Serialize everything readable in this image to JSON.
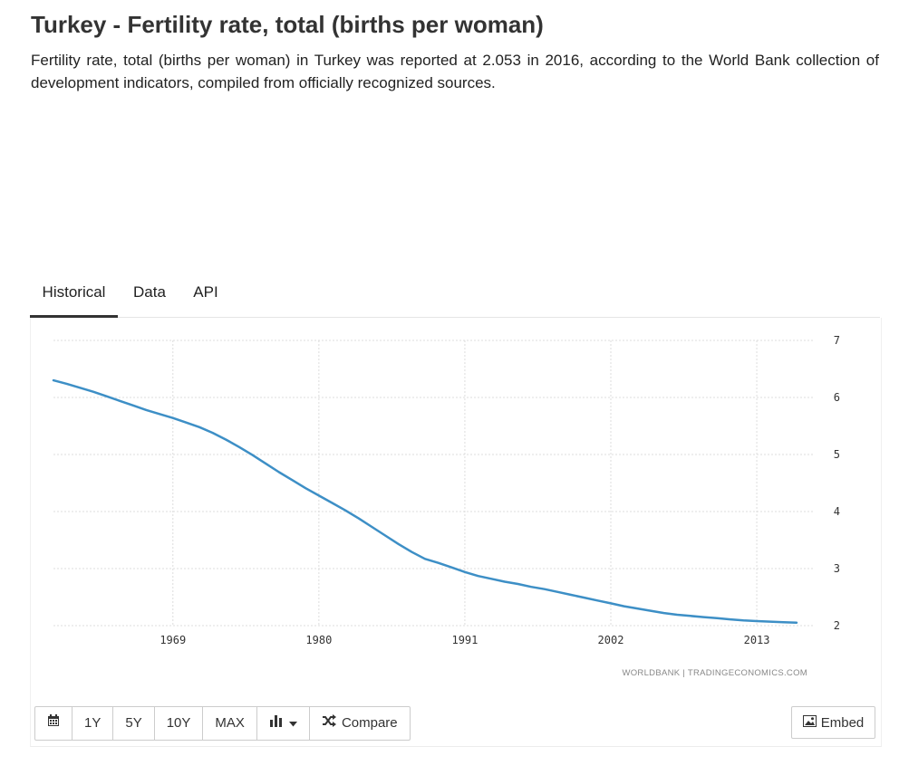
{
  "page": {
    "title": "Turkey - Fertility rate, total (births per woman)",
    "description": "Fertility rate, total (births per woman) in Turkey was reported at 2.053 in 2016, according to the World Bank collection of development indicators, compiled from officially recognized sources."
  },
  "tabs": [
    {
      "label": "Historical",
      "active": true
    },
    {
      "label": "Data",
      "active": false
    },
    {
      "label": "API",
      "active": false
    }
  ],
  "toolbar": {
    "calendar_icon": "calendar-icon",
    "ranges": [
      "1Y",
      "5Y",
      "10Y",
      "MAX"
    ],
    "chart_type_icon": "bar-chart-icon",
    "compare_icon": "shuffle-icon",
    "compare_label": "Compare",
    "embed_icon": "image-icon",
    "embed_label": "Embed"
  },
  "colors": {
    "line": "#3d8fc6",
    "grid": "#dddddd",
    "tick_text": "#333333",
    "source_text": "#888888"
  },
  "chart_data": {
    "type": "line",
    "title": "",
    "xlabel": "",
    "ylabel": "",
    "xlim": [
      1960,
      2016
    ],
    "ylim": [
      2,
      7
    ],
    "x_ticks": [
      1969,
      1980,
      1991,
      2002,
      2013
    ],
    "y_ticks": [
      2,
      3,
      4,
      5,
      6,
      7
    ],
    "y_axis_side": "right",
    "grid": true,
    "legend": "none",
    "source": "WORLDBANK | TRADINGECONOMICS.COM",
    "series": [
      {
        "x": [
          1960,
          1961,
          1962,
          1963,
          1964,
          1965,
          1966,
          1967,
          1968,
          1969,
          1970,
          1971,
          1972,
          1973,
          1974,
          1975,
          1976,
          1977,
          1978,
          1979,
          1980,
          1981,
          1982,
          1983,
          1984,
          1985,
          1986,
          1987,
          1988,
          1989,
          1990,
          1991,
          1992,
          1993,
          1994,
          1995,
          1996,
          1997,
          1998,
          1999,
          2000,
          2001,
          2002,
          2003,
          2004,
          2005,
          2006,
          2007,
          2008,
          2009,
          2010,
          2011,
          2012,
          2013,
          2014,
          2015,
          2016
        ],
        "values": [
          6.3,
          6.24,
          6.17,
          6.1,
          6.02,
          5.94,
          5.86,
          5.78,
          5.71,
          5.64,
          5.56,
          5.48,
          5.38,
          5.26,
          5.13,
          4.99,
          4.84,
          4.69,
          4.55,
          4.41,
          4.28,
          4.15,
          4.02,
          3.88,
          3.73,
          3.58,
          3.43,
          3.29,
          3.17,
          3.1,
          3.02,
          2.94,
          2.87,
          2.82,
          2.77,
          2.73,
          2.68,
          2.64,
          2.59,
          2.54,
          2.49,
          2.44,
          2.39,
          2.34,
          2.3,
          2.26,
          2.22,
          2.19,
          2.17,
          2.15,
          2.13,
          2.11,
          2.09,
          2.08,
          2.07,
          2.06,
          2.053
        ]
      }
    ]
  }
}
